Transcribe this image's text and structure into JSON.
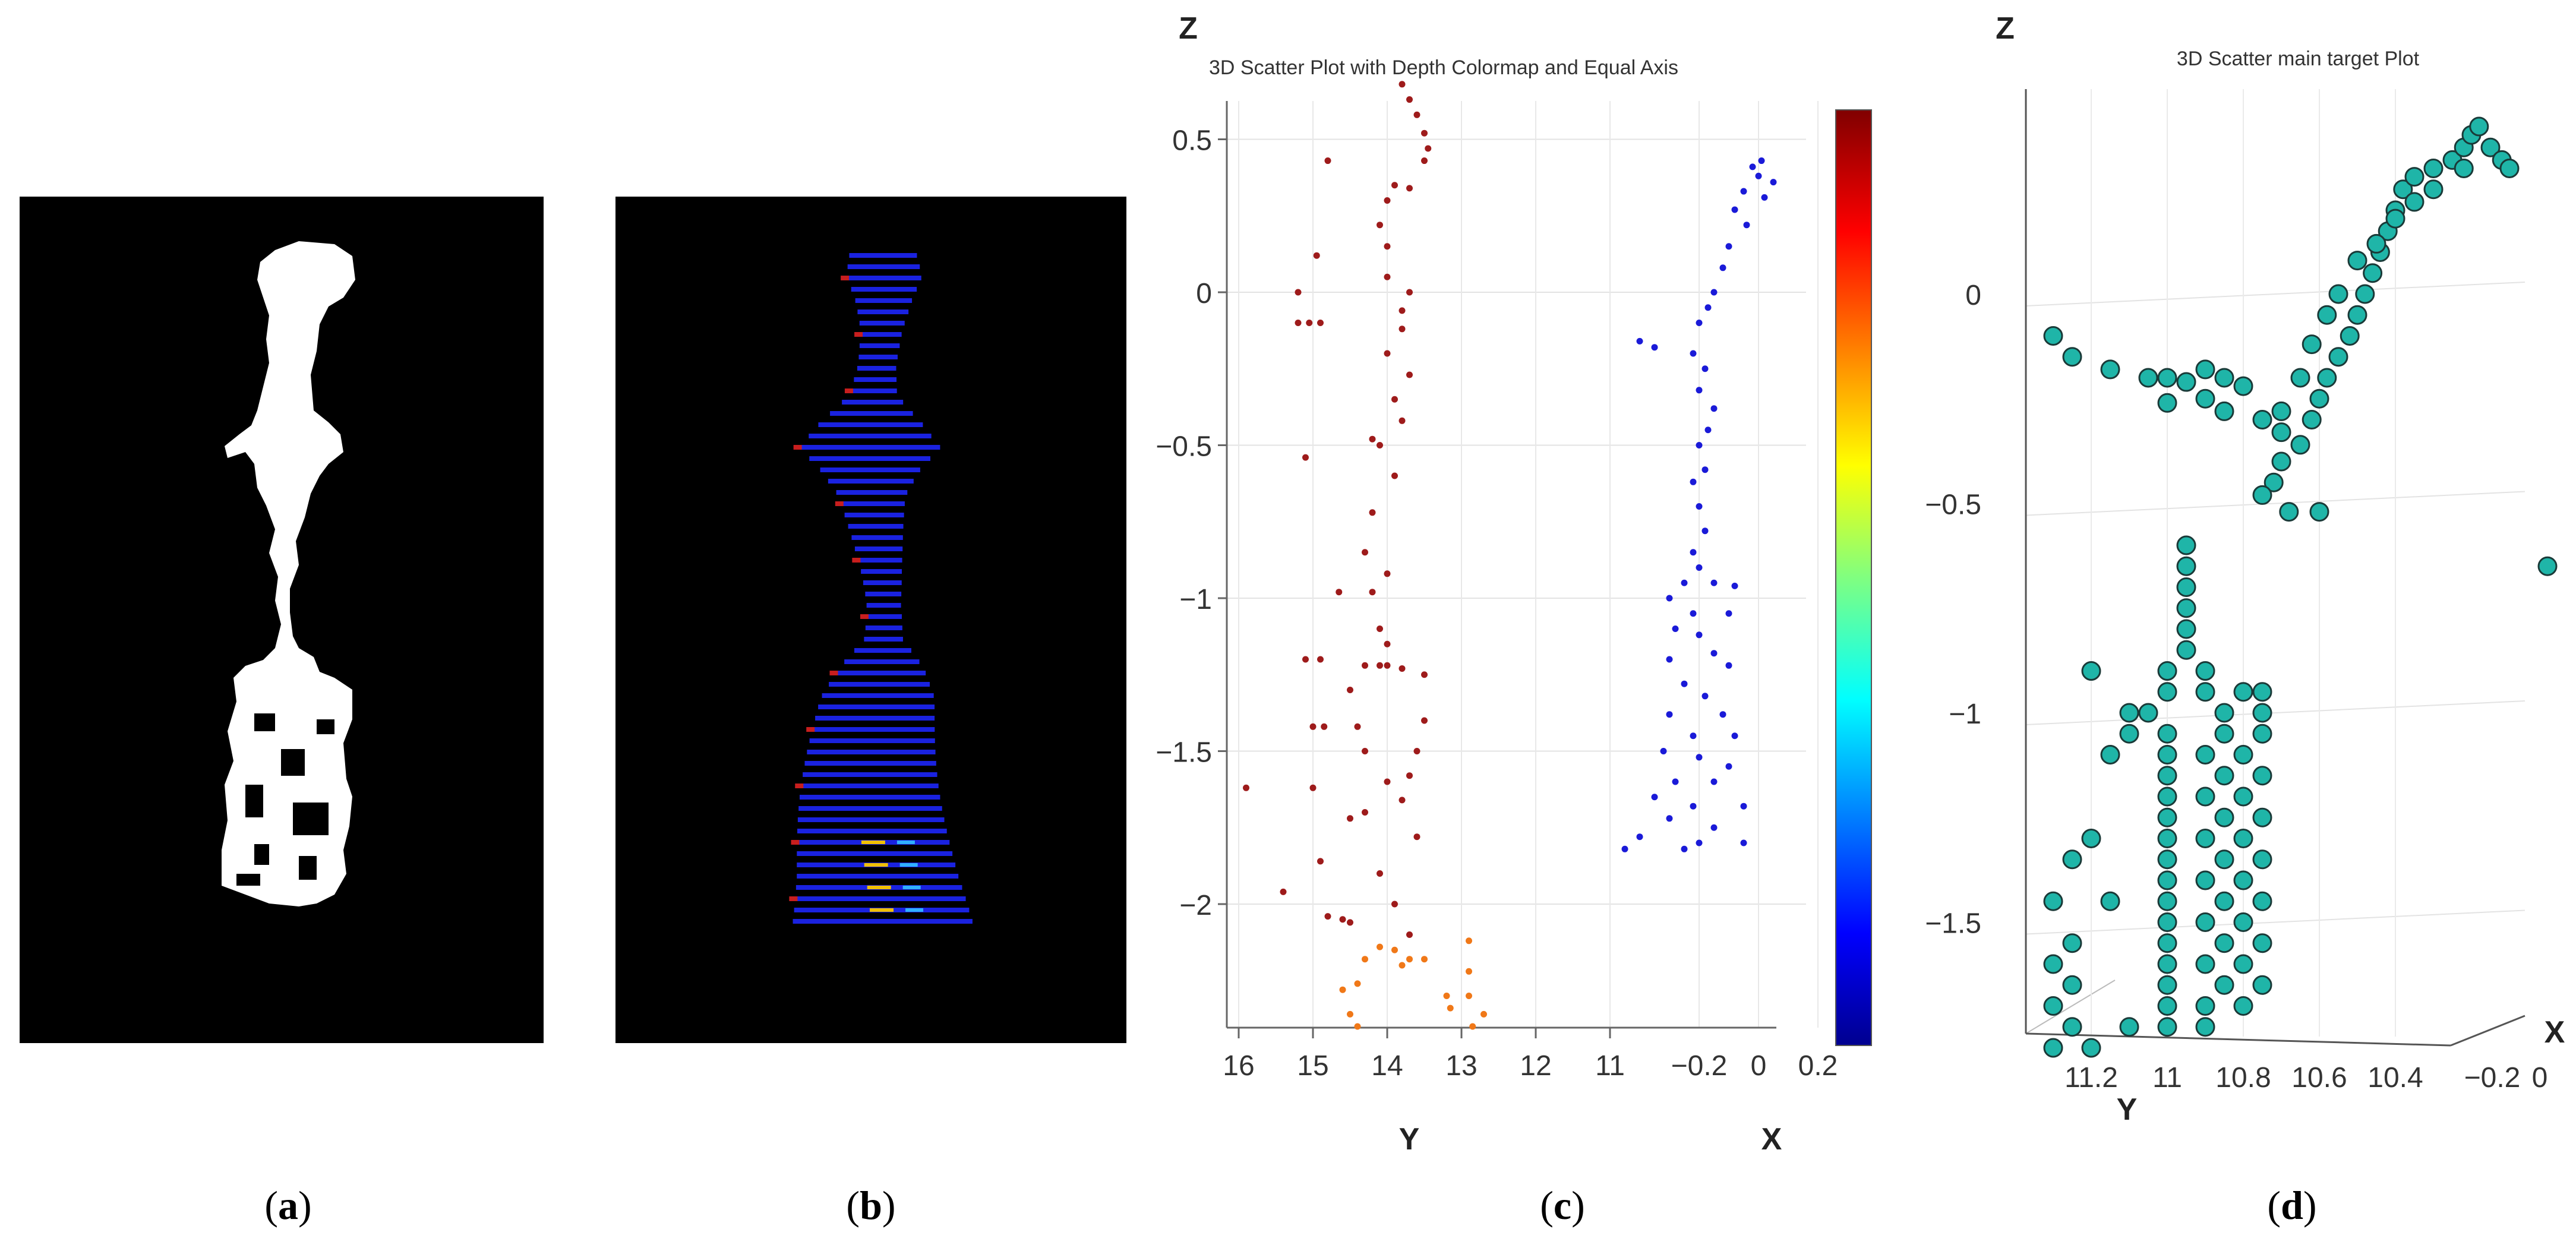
{
  "captions": [
    "(a)",
    "(b)",
    "(c)",
    "(d)"
  ],
  "caption_letters": [
    "a",
    "b",
    "c",
    "d"
  ],
  "panel_a": {
    "type": "binary mask",
    "foreground": "#ffffff",
    "background": "#000000"
  },
  "panel_b": {
    "type": "colored depth point projection",
    "background": "#000000",
    "dominant_color": "#1a22e0",
    "accent_colors": [
      "#c81e1e",
      "#f0c000",
      "#30b0ff"
    ]
  },
  "chart_data": [
    {
      "type": "scatter",
      "title": "3D Scatter Plot with Depth Colormap and Equal Axis",
      "xlabel": "Y",
      "x2label": "X",
      "zlabel": "Z",
      "z_ticks": [
        "0.5",
        "0",
        "−0.5",
        "−1",
        "−1.5",
        "−2"
      ],
      "z_tick_values": [
        0.5,
        0,
        -0.5,
        -1,
        -1.5,
        -2
      ],
      "zlim": [
        -2.4,
        0.7
      ],
      "y_ticks": [
        "16",
        "15",
        "14",
        "13",
        "12",
        "11"
      ],
      "y_tick_values": [
        16,
        15,
        14,
        13,
        12,
        11
      ],
      "x_ticks": [
        "−0.2",
        "0",
        "0.2"
      ],
      "x_tick_values": [
        -0.2,
        0,
        0.2
      ],
      "colormap": "jet",
      "colorbar": true,
      "grid": true,
      "series": [
        {
          "color": "#9e1b1b",
          "points": [
            [
              13.8,
              0.68
            ],
            [
              13.7,
              0.63
            ],
            [
              13.6,
              0.58
            ],
            [
              13.5,
              0.52
            ],
            [
              13.45,
              0.47
            ],
            [
              13.5,
              0.43
            ],
            [
              14.8,
              0.43
            ],
            [
              13.9,
              0.35
            ],
            [
              13.7,
              0.34
            ],
            [
              14.0,
              0.3
            ],
            [
              14.1,
              0.22
            ],
            [
              14.0,
              0.15
            ],
            [
              14.95,
              0.12
            ],
            [
              14.0,
              0.05
            ],
            [
              15.2,
              0.0
            ],
            [
              13.7,
              0.0
            ],
            [
              13.8,
              -0.06
            ],
            [
              15.2,
              -0.1
            ],
            [
              15.05,
              -0.1
            ],
            [
              14.9,
              -0.1
            ],
            [
              13.8,
              -0.12
            ],
            [
              14.0,
              -0.2
            ],
            [
              13.7,
              -0.27
            ],
            [
              13.9,
              -0.35
            ],
            [
              13.8,
              -0.42
            ],
            [
              14.2,
              -0.48
            ],
            [
              14.1,
              -0.5
            ],
            [
              15.1,
              -0.54
            ],
            [
              13.9,
              -0.6
            ],
            [
              14.2,
              -0.72
            ],
            [
              14.3,
              -0.85
            ],
            [
              14.0,
              -0.92
            ],
            [
              14.65,
              -0.98
            ],
            [
              14.2,
              -0.98
            ],
            [
              14.1,
              -1.1
            ],
            [
              14.0,
              -1.15
            ],
            [
              15.1,
              -1.2
            ],
            [
              14.9,
              -1.2
            ],
            [
              14.3,
              -1.22
            ],
            [
              14.1,
              -1.22
            ],
            [
              14.0,
              -1.22
            ],
            [
              13.8,
              -1.23
            ],
            [
              13.5,
              -1.25
            ],
            [
              14.5,
              -1.3
            ],
            [
              13.5,
              -1.4
            ],
            [
              14.4,
              -1.42
            ],
            [
              15.0,
              -1.42
            ],
            [
              14.85,
              -1.42
            ],
            [
              13.6,
              -1.5
            ],
            [
              14.3,
              -1.5
            ],
            [
              13.7,
              -1.58
            ],
            [
              14.0,
              -1.6
            ],
            [
              15.9,
              -1.62
            ],
            [
              15.0,
              -1.62
            ],
            [
              13.8,
              -1.66
            ],
            [
              14.3,
              -1.7
            ],
            [
              14.5,
              -1.72
            ],
            [
              13.6,
              -1.78
            ],
            [
              14.9,
              -1.86
            ],
            [
              14.1,
              -1.9
            ],
            [
              15.4,
              -1.96
            ],
            [
              13.9,
              -2.0
            ],
            [
              14.8,
              -2.04
            ],
            [
              14.6,
              -2.05
            ],
            [
              14.5,
              -2.06
            ],
            [
              13.7,
              -2.1
            ]
          ]
        },
        {
          "color": "#f07818",
          "points": [
            [
              14.1,
              -2.14
            ],
            [
              13.9,
              -2.15
            ],
            [
              12.9,
              -2.12
            ],
            [
              14.3,
              -2.18
            ],
            [
              13.7,
              -2.18
            ],
            [
              13.5,
              -2.18
            ],
            [
              13.8,
              -2.2
            ],
            [
              12.9,
              -2.22
            ],
            [
              14.4,
              -2.26
            ],
            [
              14.6,
              -2.28
            ],
            [
              13.2,
              -2.3
            ],
            [
              12.9,
              -2.3
            ],
            [
              14.5,
              -2.36
            ],
            [
              13.15,
              -2.34
            ],
            [
              12.7,
              -2.36
            ],
            [
              14.4,
              -2.4
            ],
            [
              12.85,
              -2.4
            ]
          ]
        },
        {
          "color": "#1a1ad8",
          "points": [
            [
              0.01,
              0.43
            ],
            [
              -0.02,
              0.41
            ],
            [
              0.0,
              0.38
            ],
            [
              0.05,
              0.36
            ],
            [
              -0.05,
              0.33
            ],
            [
              0.02,
              0.31
            ],
            [
              -0.08,
              0.27
            ],
            [
              -0.04,
              0.22
            ],
            [
              -0.1,
              0.15
            ],
            [
              -0.12,
              0.08
            ],
            [
              -0.15,
              0.0
            ],
            [
              -0.17,
              -0.05
            ],
            [
              -0.2,
              -0.1
            ],
            [
              -0.4,
              -0.16
            ],
            [
              -0.35,
              -0.18
            ],
            [
              -0.22,
              -0.2
            ],
            [
              -0.18,
              -0.25
            ],
            [
              -0.2,
              -0.32
            ],
            [
              -0.15,
              -0.38
            ],
            [
              -0.17,
              -0.45
            ],
            [
              -0.2,
              -0.5
            ],
            [
              -0.18,
              -0.58
            ],
            [
              -0.22,
              -0.62
            ],
            [
              -0.2,
              -0.7
            ],
            [
              -0.18,
              -0.78
            ],
            [
              -0.22,
              -0.85
            ],
            [
              -0.2,
              -0.9
            ],
            [
              -0.25,
              -0.95
            ],
            [
              -0.15,
              -0.95
            ],
            [
              -0.08,
              -0.96
            ],
            [
              -0.3,
              -1.0
            ],
            [
              -0.22,
              -1.05
            ],
            [
              -0.1,
              -1.05
            ],
            [
              -0.28,
              -1.1
            ],
            [
              -0.2,
              -1.12
            ],
            [
              -0.15,
              -1.18
            ],
            [
              -0.3,
              -1.2
            ],
            [
              -0.1,
              -1.22
            ],
            [
              -0.25,
              -1.28
            ],
            [
              -0.18,
              -1.32
            ],
            [
              -0.3,
              -1.38
            ],
            [
              -0.12,
              -1.38
            ],
            [
              -0.22,
              -1.45
            ],
            [
              -0.08,
              -1.45
            ],
            [
              -0.32,
              -1.5
            ],
            [
              -0.2,
              -1.52
            ],
            [
              -0.1,
              -1.55
            ],
            [
              -0.28,
              -1.6
            ],
            [
              -0.15,
              -1.6
            ],
            [
              -0.35,
              -1.65
            ],
            [
              -0.22,
              -1.68
            ],
            [
              -0.05,
              -1.68
            ],
            [
              -0.3,
              -1.72
            ],
            [
              -0.15,
              -1.75
            ],
            [
              -0.4,
              -1.78
            ],
            [
              -0.2,
              -1.8
            ],
            [
              -0.05,
              -1.8
            ],
            [
              -0.45,
              -1.82
            ],
            [
              -0.25,
              -1.82
            ]
          ]
        }
      ]
    },
    {
      "type": "scatter",
      "title": "3D Scatter main target Plot",
      "xlabel": "Y",
      "x2label": "X",
      "zlabel": "Z",
      "z_ticks": [
        "0",
        "−0.5",
        "−1",
        "−1.5"
      ],
      "z_tick_values": [
        0,
        -0.5,
        -1,
        -1.5
      ],
      "zlim": [
        -1.82,
        0.42
      ],
      "y_ticks": [
        "11.2",
        "11",
        "10.8",
        "10.6",
        "10.4"
      ],
      "y_tick_values": [
        11.2,
        11,
        10.8,
        10.6,
        10.4
      ],
      "x_ticks": [
        "−0.2",
        "0"
      ],
      "x_tick_values": [
        -0.2,
        0
      ],
      "marker_color": "#1fb5a8",
      "marker_edge": "#1a3a38",
      "grid": true,
      "points": [
        [
          11.3,
          -0.1
        ],
        [
          11.25,
          -0.15
        ],
        [
          11.15,
          -0.18
        ],
        [
          11.05,
          -0.2
        ],
        [
          11.0,
          -0.2
        ],
        [
          10.95,
          -0.21
        ],
        [
          10.9,
          -0.18
        ],
        [
          10.85,
          -0.2
        ],
        [
          10.8,
          -0.22
        ],
        [
          10.9,
          -0.25
        ],
        [
          11.0,
          -0.26
        ],
        [
          10.85,
          -0.28
        ],
        [
          10.75,
          -0.3
        ],
        [
          10.7,
          -0.33
        ],
        [
          10.65,
          -0.36
        ],
        [
          10.7,
          -0.4
        ],
        [
          10.72,
          -0.45
        ],
        [
          10.75,
          -0.48
        ],
        [
          10.68,
          -0.52
        ],
        [
          10.6,
          -0.52
        ],
        [
          10.62,
          -0.3
        ],
        [
          10.6,
          -0.25
        ],
        [
          10.58,
          -0.2
        ],
        [
          10.55,
          -0.15
        ],
        [
          10.52,
          -0.1
        ],
        [
          10.5,
          -0.05
        ],
        [
          10.48,
          0.0
        ],
        [
          10.46,
          0.05
        ],
        [
          10.44,
          0.1
        ],
        [
          10.42,
          0.15
        ],
        [
          10.4,
          0.2
        ],
        [
          10.38,
          0.25
        ],
        [
          10.35,
          0.28
        ],
        [
          10.3,
          0.3
        ],
        [
          10.25,
          0.32
        ],
        [
          10.22,
          0.35
        ],
        [
          10.2,
          0.38
        ],
        [
          10.18,
          0.4
        ],
        [
          10.15,
          0.35
        ],
        [
          10.12,
          0.32
        ],
        [
          10.1,
          0.3
        ],
        [
          10.22,
          0.3
        ],
        [
          10.3,
          0.25
        ],
        [
          10.35,
          0.22
        ],
        [
          10.4,
          0.18
        ],
        [
          10.45,
          0.12
        ],
        [
          10.5,
          0.08
        ],
        [
          10.55,
          0.0
        ],
        [
          10.58,
          -0.05
        ],
        [
          10.62,
          -0.12
        ],
        [
          10.65,
          -0.2
        ],
        [
          10.7,
          -0.28
        ],
        [
          10.0,
          -0.65
        ],
        [
          10.95,
          -0.6
        ],
        [
          10.95,
          -0.65
        ],
        [
          10.95,
          -0.7
        ],
        [
          10.95,
          -0.75
        ],
        [
          10.95,
          -0.8
        ],
        [
          10.95,
          -0.85
        ],
        [
          11.0,
          -0.9
        ],
        [
          10.9,
          -0.9
        ],
        [
          11.0,
          -0.95
        ],
        [
          10.9,
          -0.95
        ],
        [
          10.8,
          -0.95
        ],
        [
          10.75,
          -0.95
        ],
        [
          10.85,
          -1.0
        ],
        [
          10.75,
          -1.0
        ],
        [
          11.05,
          -1.0
        ],
        [
          11.0,
          -1.05
        ],
        [
          10.85,
          -1.05
        ],
        [
          10.75,
          -1.05
        ],
        [
          11.1,
          -1.05
        ],
        [
          11.0,
          -1.1
        ],
        [
          10.9,
          -1.1
        ],
        [
          10.8,
          -1.1
        ],
        [
          11.0,
          -1.15
        ],
        [
          10.85,
          -1.15
        ],
        [
          10.75,
          -1.15
        ],
        [
          11.0,
          -1.2
        ],
        [
          10.9,
          -1.2
        ],
        [
          10.8,
          -1.2
        ],
        [
          11.0,
          -1.25
        ],
        [
          10.85,
          -1.25
        ],
        [
          10.75,
          -1.25
        ],
        [
          11.0,
          -1.3
        ],
        [
          10.9,
          -1.3
        ],
        [
          10.8,
          -1.3
        ],
        [
          11.0,
          -1.35
        ],
        [
          10.85,
          -1.35
        ],
        [
          10.75,
          -1.35
        ],
        [
          11.0,
          -1.4
        ],
        [
          10.9,
          -1.4
        ],
        [
          10.8,
          -1.4
        ],
        [
          11.0,
          -1.45
        ],
        [
          10.85,
          -1.45
        ],
        [
          10.75,
          -1.45
        ],
        [
          11.0,
          -1.5
        ],
        [
          10.9,
          -1.5
        ],
        [
          10.8,
          -1.5
        ],
        [
          11.0,
          -1.55
        ],
        [
          10.85,
          -1.55
        ],
        [
          10.75,
          -1.55
        ],
        [
          11.0,
          -1.6
        ],
        [
          10.9,
          -1.6
        ],
        [
          10.8,
          -1.6
        ],
        [
          11.0,
          -1.65
        ],
        [
          10.85,
          -1.65
        ],
        [
          10.75,
          -1.65
        ],
        [
          11.0,
          -1.7
        ],
        [
          10.9,
          -1.7
        ],
        [
          10.8,
          -1.7
        ],
        [
          11.0,
          -1.75
        ],
        [
          10.9,
          -1.75
        ],
        [
          11.2,
          -1.3
        ],
        [
          11.25,
          -1.35
        ],
        [
          11.3,
          -1.45
        ],
        [
          11.25,
          -1.55
        ],
        [
          11.3,
          -1.6
        ],
        [
          11.25,
          -1.65
        ],
        [
          11.3,
          -1.7
        ],
        [
          11.25,
          -1.75
        ],
        [
          11.3,
          -1.8
        ],
        [
          11.2,
          -1.8
        ],
        [
          11.15,
          -1.45
        ],
        [
          11.1,
          -1.0
        ],
        [
          11.15,
          -1.1
        ],
        [
          11.2,
          -0.9
        ],
        [
          11.1,
          -1.75
        ]
      ]
    }
  ]
}
